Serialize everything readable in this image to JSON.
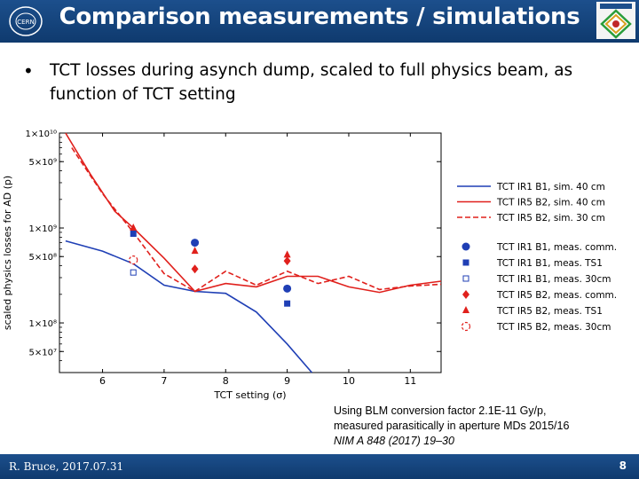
{
  "header": {
    "title": "Comparison measurements / simulations"
  },
  "bullet": {
    "text": "TCT losses during asynch dump, scaled to full physics beam, as function of TCT setting"
  },
  "note": {
    "line1": "Using BLM conversion factor 2.1E-11 Gy/p,",
    "line2": "measured parasitically in aperture MDs 2015/16",
    "line3": "NIM A 848 (2017) 19–30"
  },
  "footer": {
    "author": "R. Bruce, 2017.07.31",
    "page": "8"
  },
  "colors": {
    "blue": "#1f3fb5",
    "red": "#e0201c",
    "header": "#164680"
  },
  "chart_data": {
    "type": "line",
    "xlabel": "TCT setting (σ)",
    "ylabel": "scaled physics losses for AD (p)",
    "xlim": [
      5.3,
      11.5
    ],
    "ylim": [
      30000000,
      10000000000
    ],
    "yscale": "log",
    "xticks": [
      6,
      7,
      8,
      9,
      10,
      11
    ],
    "yticks": [
      {
        "value": 50000000,
        "label": "5×10⁷"
      },
      {
        "value": 100000000,
        "label": "1×10⁸"
      },
      {
        "value": 500000000,
        "label": "5×10⁸"
      },
      {
        "value": 1000000000,
        "label": "1×10⁹"
      },
      {
        "value": 5000000000,
        "label": "5×10⁹"
      },
      {
        "value": 10000000000,
        "label": "1×10¹⁰"
      }
    ],
    "legend_position": "right",
    "series": [
      {
        "name": "TCT IR1 B1, sim. 40 cm",
        "kind": "line",
        "color": "#1f3fb5",
        "dash": "solid",
        "x": [
          5.4,
          6.0,
          6.5,
          7.0,
          7.5,
          8.0,
          8.5,
          9.0,
          9.4
        ],
        "y": [
          730000000,
          570000000,
          420000000,
          250000000,
          215000000,
          205000000,
          130000000,
          60000000,
          30000000
        ]
      },
      {
        "name": "TCT IR5 B2, sim. 40 cm",
        "kind": "line",
        "color": "#e0201c",
        "dash": "solid",
        "x": [
          5.4,
          5.8,
          6.2,
          6.5,
          7.0,
          7.5,
          8.0,
          8.5,
          9.0,
          9.5,
          10.0,
          10.5,
          11.0,
          11.5
        ],
        "y": [
          10000000000,
          3700000000,
          1500000000,
          1000000000,
          480000000,
          215000000,
          260000000,
          240000000,
          310000000,
          310000000,
          240000000,
          210000000,
          250000000,
          275000000
        ]
      },
      {
        "name": "TCT IR5 B2, sim. 30 cm",
        "kind": "line",
        "color": "#e0201c",
        "dash": "dashed",
        "x": [
          5.5,
          6.0,
          6.5,
          7.0,
          7.5,
          8.0,
          8.5,
          9.0,
          9.5,
          10.0,
          10.5,
          11.0,
          11.5
        ],
        "y": [
          7000000000,
          2300000000,
          900000000,
          330000000,
          215000000,
          350000000,
          250000000,
          350000000,
          260000000,
          310000000,
          225000000,
          245000000,
          255000000
        ]
      },
      {
        "name": "TCT IR1 B1, meas. comm.",
        "kind": "marker",
        "marker": "circle",
        "color": "#1f3fb5",
        "x": [
          7.5,
          9.0
        ],
        "y": [
          700000000,
          230000000
        ]
      },
      {
        "name": "TCT IR1 B1, meas. TS1",
        "kind": "marker",
        "marker": "square",
        "color": "#1f3fb5",
        "x": [
          6.5,
          9.0
        ],
        "y": [
          870000000,
          160000000
        ]
      },
      {
        "name": "TCT IR1 B1, meas. 30cm",
        "kind": "marker",
        "marker": "square-open",
        "color": "#1f3fb5",
        "x": [
          6.5
        ],
        "y": [
          340000000
        ]
      },
      {
        "name": "TCT IR5 B2, meas. comm.",
        "kind": "marker",
        "marker": "diamond",
        "color": "#e0201c",
        "x": [
          7.5,
          9.0
        ],
        "y": [
          370000000,
          450000000
        ]
      },
      {
        "name": "TCT IR5 B2, meas. TS1",
        "kind": "marker",
        "marker": "triangle",
        "color": "#e0201c",
        "x": [
          6.5,
          7.5,
          9.0
        ],
        "y": [
          1000000000,
          570000000,
          520000000
        ]
      },
      {
        "name": "TCT IR5 B2, meas. 30cm",
        "kind": "marker",
        "marker": "circle-open",
        "color": "#e0201c",
        "x": [
          6.5
        ],
        "y": [
          460000000
        ]
      }
    ]
  }
}
